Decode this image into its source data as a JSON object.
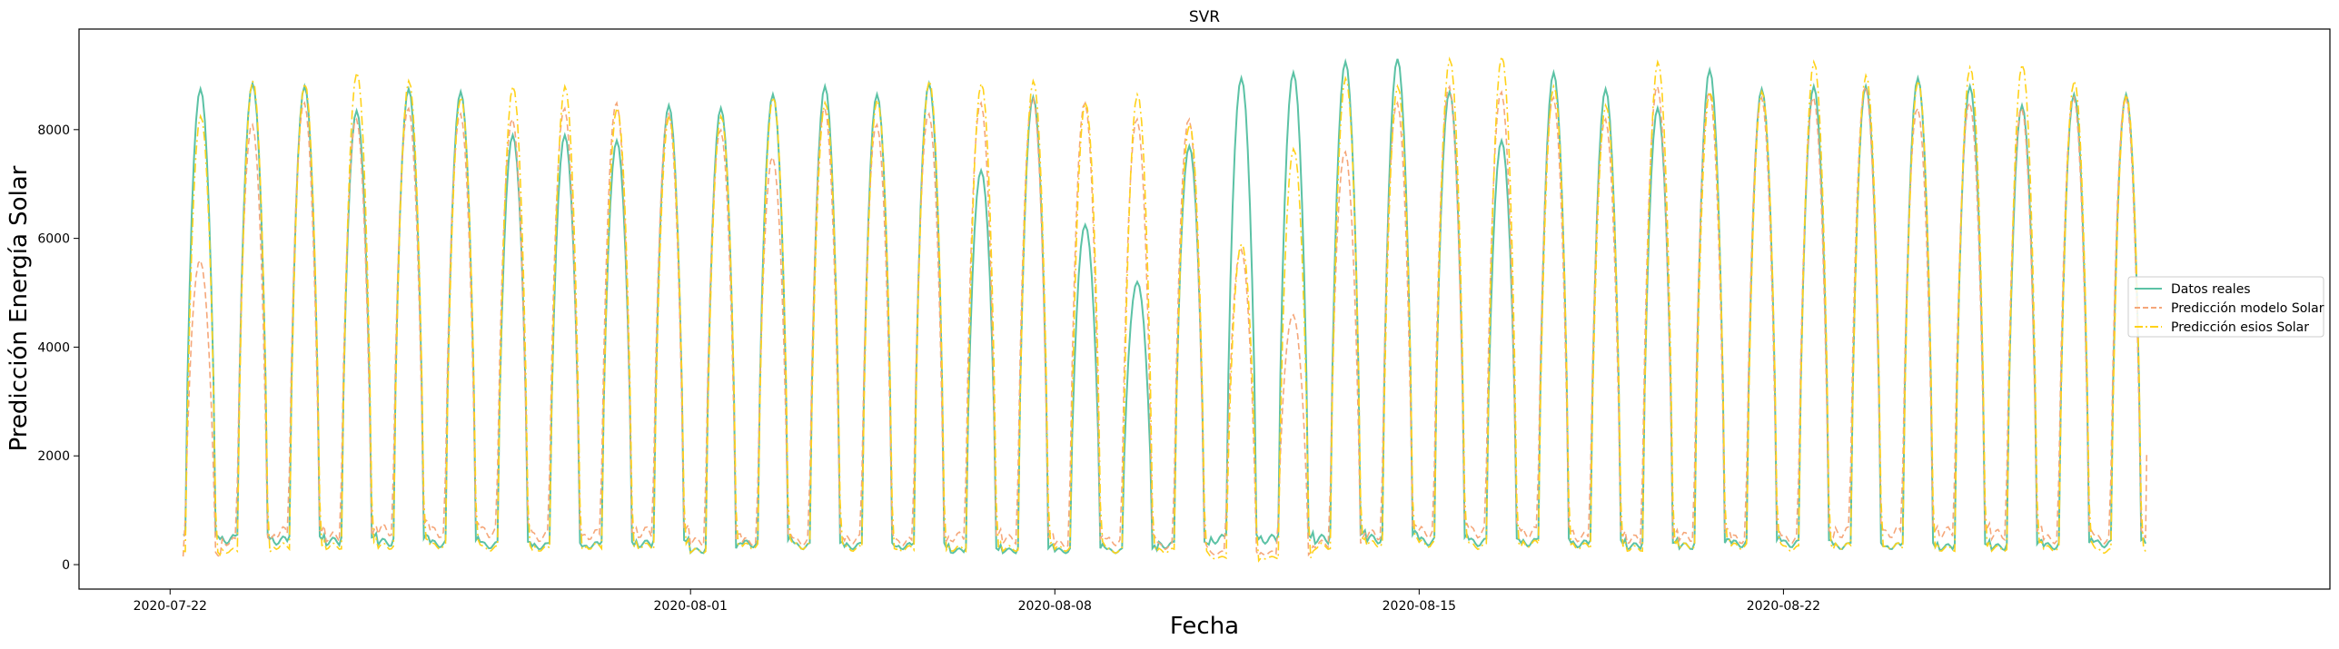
{
  "chart_data": {
    "type": "line",
    "title": "SVR",
    "xlabel": "Fecha",
    "ylabel": "Predicción Energía Solar",
    "x_start": "2020-07-22",
    "x_end": "2020-08-28",
    "xlim": [
      "2020-07-20T06:00",
      "2020-09-01T12:00"
    ],
    "ylim": [
      -450,
      9850
    ],
    "x_ticks": [
      "2020-07-22",
      "2020-08-01",
      "2020-08-08",
      "2020-08-15",
      "2020-08-22"
    ],
    "y_ticks": [
      0,
      2000,
      4000,
      6000,
      8000
    ],
    "grid": false,
    "legend_position": "center-right",
    "series": [
      {
        "name": "Datos reales",
        "color": "#5bc2a5",
        "style": "solid",
        "daily_peaks": [
          8750,
          8850,
          8800,
          8350,
          8750,
          8700,
          7900,
          7900,
          7800,
          8450,
          8400,
          8650,
          8800,
          8650,
          8850,
          7250,
          8600,
          6250,
          5200,
          7700,
          8950,
          9050,
          9250,
          9300,
          8700,
          7800,
          9050,
          8750,
          8400,
          9100,
          8750,
          8800,
          8800,
          8950,
          8800,
          8450,
          8650,
          8650
        ],
        "daily_min": [
          550,
          550,
          520,
          500,
          480,
          450,
          420,
          400,
          420,
          450,
          300,
          450,
          400,
          400,
          400,
          300,
          300,
          300,
          300,
          420,
          550,
          550,
          550,
          550,
          500,
          480,
          480,
          450,
          400,
          400,
          450,
          450,
          400,
          400,
          380,
          380,
          400,
          450
        ]
      },
      {
        "name": "Predicción modelo Solar",
        "color": "#f5a77a",
        "style": "dashed",
        "daily_peaks": [
          5600,
          8100,
          8500,
          8200,
          8400,
          8300,
          8200,
          8400,
          8500,
          8300,
          8000,
          7500,
          8400,
          8100,
          8300,
          8500,
          8600,
          8500,
          8200,
          8200,
          5800,
          4600,
          7600,
          8500,
          8800,
          8700,
          8600,
          8200,
          8800,
          8700,
          8600,
          8600,
          8800,
          8400,
          8500,
          8400,
          8600,
          8600
        ],
        "daily_min": [
          150,
          500,
          700,
          600,
          750,
          700,
          700,
          600,
          650,
          700,
          500,
          500,
          500,
          550,
          500,
          600,
          550,
          450,
          500,
          400,
          250,
          250,
          450,
          650,
          700,
          700,
          700,
          600,
          550,
          600,
          550,
          550,
          700,
          700,
          700,
          650,
          550,
          550
        ],
        "last_value": 2050
      },
      {
        "name": "Predicción esios Solar",
        "color": "#ffd21a",
        "style": "dashdot",
        "daily_peaks": [
          8250,
          8900,
          8850,
          9050,
          8900,
          8600,
          8800,
          8800,
          8400,
          8250,
          8250,
          8600,
          8500,
          8550,
          8900,
          8850,
          8900,
          8500,
          8650,
          8100,
          5900,
          7650,
          8950,
          8800,
          9300,
          9350,
          8800,
          8450,
          9250,
          8700,
          8700,
          9250,
          9000,
          8900,
          9150,
          9200,
          8900,
          8650
        ],
        "daily_min": [
          250,
          300,
          400,
          400,
          400,
          400,
          350,
          350,
          400,
          400,
          300,
          400,
          400,
          350,
          350,
          350,
          350,
          350,
          300,
          300,
          150,
          150,
          400,
          450,
          450,
          400,
          450,
          400,
          350,
          400,
          400,
          350,
          400,
          400,
          350,
          350,
          350,
          300
        ]
      }
    ]
  }
}
